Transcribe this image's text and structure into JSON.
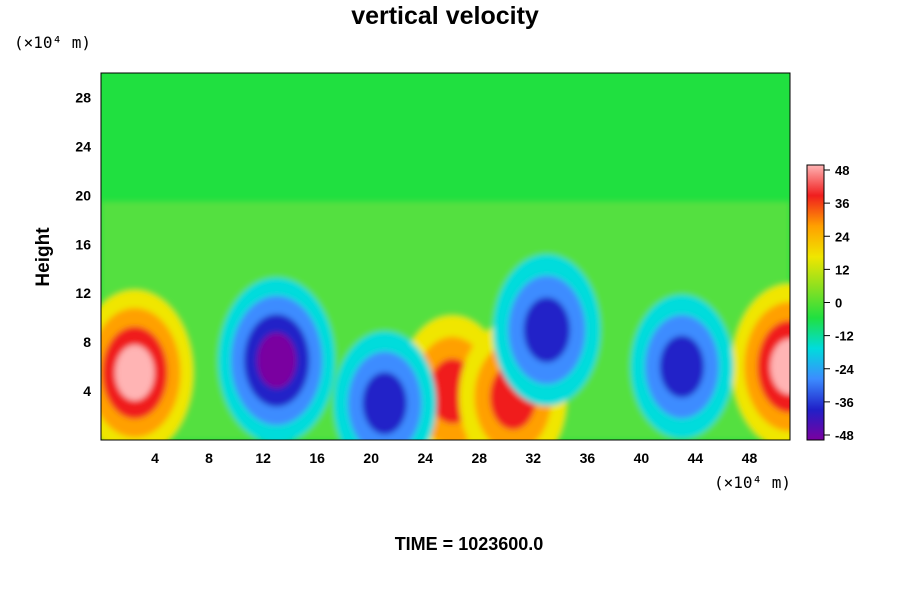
{
  "chart_data": {
    "type": "heatmap",
    "title": "vertical velocity",
    "ylabel": "Height",
    "x_unit": "(×10⁴ m)",
    "y_unit": "(×10⁴ m)",
    "x_ticks": [
      4,
      8,
      12,
      16,
      20,
      24,
      28,
      32,
      36,
      40,
      44,
      48
    ],
    "y_ticks": [
      4,
      8,
      12,
      16,
      20,
      24,
      28
    ],
    "xlim": [
      0,
      51
    ],
    "ylim": [
      0,
      30
    ],
    "colorbar": {
      "ticks": [
        48,
        36,
        24,
        12,
        0,
        -12,
        -24,
        -36,
        -48
      ],
      "range": [
        -48,
        48
      ],
      "colors": [
        "#7a00a0",
        "#2020c8",
        "#3c8cff",
        "#00dcdc",
        "#20e040",
        "#8ce020",
        "#f0e600",
        "#ffa000",
        "#f01e1e",
        "#ffb4b4"
      ]
    },
    "features": [
      {
        "type": "updraft",
        "x": 2.5,
        "y": 5.5,
        "peak": 48
      },
      {
        "type": "updraft",
        "x": 51,
        "y": 6,
        "peak": 48
      },
      {
        "type": "updraft",
        "x": 26,
        "y": 4,
        "peak": 40
      },
      {
        "type": "updraft",
        "x": 30.5,
        "y": 3.5,
        "peak": 40
      },
      {
        "type": "downdraft",
        "x": 13,
        "y": 6.5,
        "peak": -48
      },
      {
        "type": "downdraft",
        "x": 33,
        "y": 9,
        "peak": -40
      },
      {
        "type": "downdraft",
        "x": 43,
        "y": 6,
        "peak": -36
      },
      {
        "type": "downdraft",
        "x": 21,
        "y": 3,
        "peak": -36
      }
    ]
  },
  "footer": {
    "time_label": "TIME = 1023600.0"
  }
}
